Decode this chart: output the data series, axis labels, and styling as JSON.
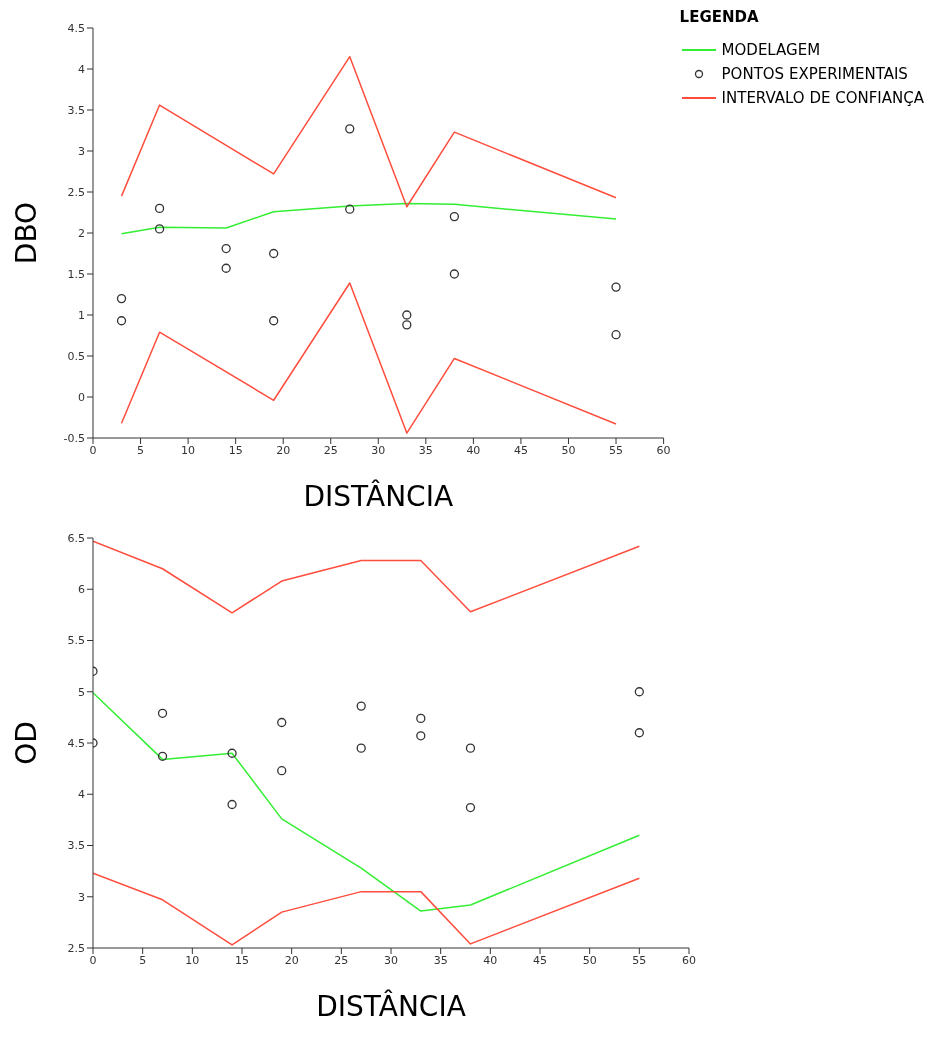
{
  "chart_data": [
    {
      "type": "line",
      "xlabel": "DISTÂNCIA",
      "ylabel": "DBO",
      "legend_title": "LEGENDA",
      "legend": "top right",
      "grid": false,
      "xlim": [
        0,
        60
      ],
      "xticks": [
        0,
        5,
        10,
        15,
        20,
        25,
        30,
        35,
        40,
        45,
        50,
        55,
        60
      ],
      "ylim": [
        -0.5,
        4.5
      ],
      "yticks": [
        -0.5,
        0,
        0.5,
        1,
        1.5,
        2,
        2.5,
        3,
        3.5,
        4,
        4.5
      ],
      "series": [
        {
          "name": "MODELAGEM",
          "color": "#33ee33",
          "marker": "none",
          "x": [
            3,
            7,
            14,
            19,
            27,
            33,
            38,
            55
          ],
          "values": [
            1.99,
            2.07,
            2.06,
            2.26,
            2.33,
            2.36,
            2.35,
            2.17
          ]
        },
        {
          "name": "PONTOS EXPERIMENTAIS",
          "type": "scatter",
          "color": "#333333",
          "marker": "circle",
          "x": [
            3,
            3,
            7,
            7,
            14,
            14,
            19,
            19,
            27,
            27,
            33,
            33,
            38,
            38,
            55,
            55
          ],
          "values": [
            1.2,
            0.93,
            2.3,
            2.05,
            1.81,
            1.57,
            1.75,
            0.93,
            3.27,
            2.29,
            1.0,
            0.88,
            2.2,
            1.5,
            1.34,
            0.76
          ]
        },
        {
          "name": "INTERVALO DE CONFIANÇA",
          "color": "#ff4d3d",
          "marker": "none",
          "x": [
            3,
            7,
            19,
            27,
            33,
            38,
            55
          ],
          "values": [
            2.45,
            3.56,
            2.72,
            4.15,
            2.32,
            3.23,
            2.43
          ]
        },
        {
          "color": "#ff4d3d",
          "marker": "none",
          "x": [
            3,
            7,
            19,
            27,
            33,
            38,
            55
          ],
          "values": [
            -0.32,
            0.79,
            -0.04,
            1.39,
            -0.44,
            0.47,
            -0.33
          ]
        }
      ]
    },
    {
      "type": "line",
      "xlabel": "DISTÂNCIA",
      "ylabel": "OD",
      "grid": false,
      "xlim": [
        0,
        60
      ],
      "xticks": [
        0,
        5,
        10,
        15,
        20,
        25,
        30,
        35,
        40,
        45,
        50,
        55,
        60
      ],
      "ylim": [
        2.5,
        6.5
      ],
      "yticks": [
        2.5,
        3,
        3.5,
        4,
        4.5,
        5,
        5.5,
        6,
        6.5
      ],
      "series": [
        {
          "color": "#33ee33",
          "marker": "none",
          "x": [
            0,
            7,
            14,
            19,
            27,
            33,
            38,
            55
          ],
          "values": [
            4.99,
            4.34,
            4.4,
            3.76,
            3.28,
            2.86,
            2.92,
            3.6
          ]
        },
        {
          "type": "scatter",
          "color": "#333333",
          "marker": "circle",
          "x": [
            0,
            0,
            7,
            7,
            14,
            14,
            19,
            19,
            27,
            27,
            33,
            33,
            38,
            38,
            55,
            55
          ],
          "values": [
            5.2,
            4.5,
            4.79,
            4.37,
            4.4,
            3.9,
            4.7,
            4.23,
            4.86,
            4.45,
            4.74,
            4.57,
            4.45,
            3.87,
            5.0,
            4.6
          ]
        },
        {
          "color": "#ff4d3d",
          "marker": "none",
          "x": [
            0,
            7,
            14,
            19,
            27,
            33,
            38,
            55
          ],
          "values": [
            6.47,
            6.2,
            5.77,
            6.08,
            6.28,
            6.28,
            5.78,
            6.42
          ]
        },
        {
          "color": "#ff4d3d",
          "marker": "none",
          "x": [
            0,
            7,
            14,
            19,
            27,
            33,
            38,
            55
          ],
          "values": [
            3.23,
            2.97,
            2.53,
            2.85,
            3.05,
            3.05,
            2.54,
            3.18
          ]
        }
      ]
    }
  ]
}
